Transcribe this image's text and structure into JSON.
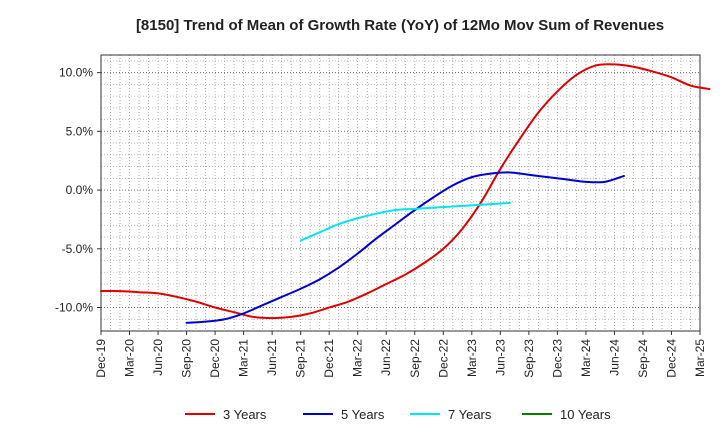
{
  "chart_data": {
    "type": "line",
    "title": "[8150]  Trend of Mean of Growth Rate (YoY) of 12Mo Mov Sum of Revenues",
    "xlabel": "",
    "ylabel": "",
    "ylim": [
      -12,
      11.5
    ],
    "y_ticks": [
      -10,
      -5,
      0,
      5,
      10
    ],
    "y_tick_labels": [
      "-10.0%",
      "-5.0%",
      "0.0%",
      "5.0%",
      "10.0%"
    ],
    "x_tick_labels": [
      "Dec-19",
      "Mar-20",
      "Jun-20",
      "Sep-20",
      "Dec-20",
      "Mar-21",
      "Jun-21",
      "Sep-21",
      "Dec-21",
      "Mar-22",
      "Jun-22",
      "Sep-22",
      "Dec-22",
      "Mar-23",
      "Jun-23",
      "Sep-23",
      "Dec-23",
      "Mar-24",
      "Jun-24",
      "Sep-24",
      "Dec-24",
      "Mar-25"
    ],
    "grid": true,
    "legend_position": "bottom",
    "series": [
      {
        "name": "3 Years",
        "color": "#dd0000",
        "start_index": 0,
        "values": [
          -8.6,
          -8.6,
          -8.7,
          -8.8,
          -9.1,
          -9.5,
          -10.0,
          -10.4,
          -10.8,
          -10.9,
          -10.8,
          -10.5,
          -10.0,
          -9.5,
          -8.8,
          -8.0,
          -7.2,
          -6.2,
          -5.0,
          -3.3,
          -1.0,
          1.8,
          4.3,
          6.6,
          8.4,
          9.8,
          10.6,
          10.7,
          10.5,
          10.1,
          9.6,
          8.9,
          8.6
        ]
      },
      {
        "name": "5 Years",
        "color": "#0000cc",
        "start_index": 9,
        "values": [
          -11.3,
          -11.2,
          -11.0,
          -10.5,
          -9.8,
          -9.1,
          -8.4,
          -7.6,
          -6.6,
          -5.4,
          -4.1,
          -2.9,
          -1.7,
          -0.6,
          0.4,
          1.1,
          1.4,
          1.5,
          1.3,
          1.1,
          0.9,
          0.7,
          0.7,
          1.2
        ]
      },
      {
        "name": "7 Years",
        "color": "#00e5ee",
        "start_index": 21,
        "values": [
          -4.3,
          -3.6,
          -2.9,
          -2.4,
          -2.0,
          -1.7,
          -1.6,
          -1.5,
          -1.4,
          -1.3,
          -1.2,
          -1.1
        ]
      },
      {
        "name": "10 Years",
        "color": "#008000",
        "start_index": 0,
        "values": []
      }
    ]
  }
}
